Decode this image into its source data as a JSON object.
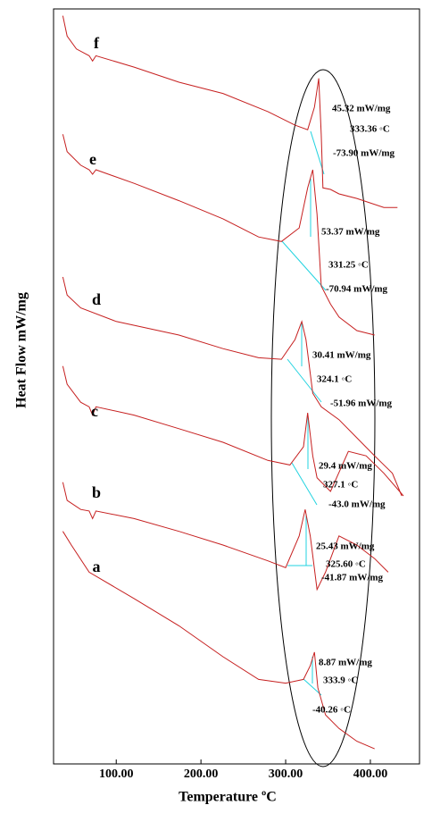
{
  "chart_data": {
    "type": "line",
    "xlabel": "Temperature ºC",
    "ylabel": "Heat Flow mW/mg",
    "xlim": [
      26,
      458
    ],
    "ylim": [
      0,
      100
    ],
    "xticks": [
      {
        "value": 100,
        "label": "100.00"
      },
      {
        "value": 200,
        "label": "200.00"
      },
      {
        "value": 300,
        "label": "300.00"
      },
      {
        "value": 400,
        "label": "400.00"
      }
    ],
    "series": [
      {
        "name": "f",
        "color": "#c62020",
        "x": [
          37,
          42,
          53,
          68,
          72,
          76,
          121,
          174,
          226,
          279,
          311,
          326,
          334,
          339,
          342,
          344,
          353,
          363,
          384,
          416,
          432
        ],
        "values": [
          99.1,
          96.4,
          94.7,
          93.8,
          93.1,
          93.8,
          92.3,
          90.3,
          88.8,
          86.4,
          84.6,
          84.0,
          87.0,
          90.8,
          83.4,
          76.3,
          76.1,
          75.5,
          74.9,
          73.7,
          73.7
        ],
        "annotations": [
          "45.32 mW/mg",
          "333.36 ◦C",
          "-73.90 mW/mg"
        ]
      },
      {
        "name": "e",
        "color": "#c62020",
        "x": [
          37,
          42,
          58,
          68,
          72,
          76,
          121,
          174,
          226,
          268,
          295,
          316,
          326,
          332,
          337,
          342,
          353,
          363,
          384,
          405
        ],
        "values": [
          83.4,
          81.1,
          79.3,
          78.7,
          78.1,
          78.7,
          76.9,
          74.6,
          72.2,
          69.8,
          69.2,
          71.0,
          76.3,
          78.7,
          72.8,
          63.3,
          60.9,
          59.2,
          57.4,
          56.8
        ],
        "annotations": [
          "53.37 mW/mg",
          "331.25 ◦C",
          "-70.94 mW/mg"
        ]
      },
      {
        "name": "d",
        "color": "#c62020",
        "x": [
          37,
          42,
          58,
          100,
          174,
          226,
          268,
          295,
          311,
          319,
          324,
          332,
          342,
          363,
          384,
          405,
          426,
          437
        ],
        "values": [
          64.5,
          62.1,
          60.4,
          58.6,
          56.8,
          55.0,
          53.8,
          53.6,
          56.2,
          58.6,
          56.2,
          49.1,
          47.3,
          45.6,
          43.2,
          40.8,
          38.5,
          35.5
        ],
        "annotations": [
          "30.41 mW/mg",
          "324.1 ◦C",
          "-51.96 mW/mg"
        ]
      },
      {
        "name": "c",
        "color": "#c62020",
        "x": [
          37,
          42,
          58,
          68,
          72,
          76,
          121,
          174,
          226,
          279,
          305,
          321,
          326,
          332,
          337,
          353,
          374,
          395,
          416,
          439
        ],
        "values": [
          52.7,
          50.3,
          47.9,
          47.3,
          46.2,
          47.3,
          46.2,
          44.4,
          42.6,
          40.2,
          39.6,
          42.0,
          46.5,
          40.8,
          37.9,
          36.1,
          41.4,
          40.8,
          38.5,
          35.5
        ],
        "annotations": [
          "29.4 mW/mg",
          "327.1 ◦C",
          "-43.0 mW/mg"
        ]
      },
      {
        "name": "b",
        "color": "#c62020",
        "x": [
          37,
          42,
          58,
          68,
          72,
          76,
          121,
          174,
          226,
          279,
          300,
          316,
          323,
          329,
          337,
          347,
          363,
          384,
          405,
          421
        ],
        "values": [
          37.3,
          34.9,
          33.7,
          33.5,
          32.5,
          33.5,
          32.5,
          30.8,
          29.0,
          26.9,
          26.0,
          30.2,
          33.7,
          30.2,
          23.1,
          25.4,
          30.2,
          29.0,
          27.2,
          25.4
        ],
        "annotations": [
          "25.43 mW/mg",
          "325.60 ◦C",
          "-41.87 mW/mg"
        ]
      },
      {
        "name": "a",
        "color": "#c62020",
        "x": [
          37,
          47,
          68,
          121,
          174,
          226,
          268,
          300,
          321,
          329,
          334,
          338,
          347,
          363,
          384,
          405
        ],
        "values": [
          30.8,
          29.0,
          25.4,
          21.9,
          18.3,
          14.2,
          11.2,
          10.7,
          11.2,
          13.0,
          14.8,
          10.1,
          6.5,
          4.7,
          3.0,
          2.0
        ],
        "annotations": [
          "8.87 mW/mg",
          "333.9 ◦C",
          "-40.26 ◦C"
        ]
      }
    ]
  }
}
